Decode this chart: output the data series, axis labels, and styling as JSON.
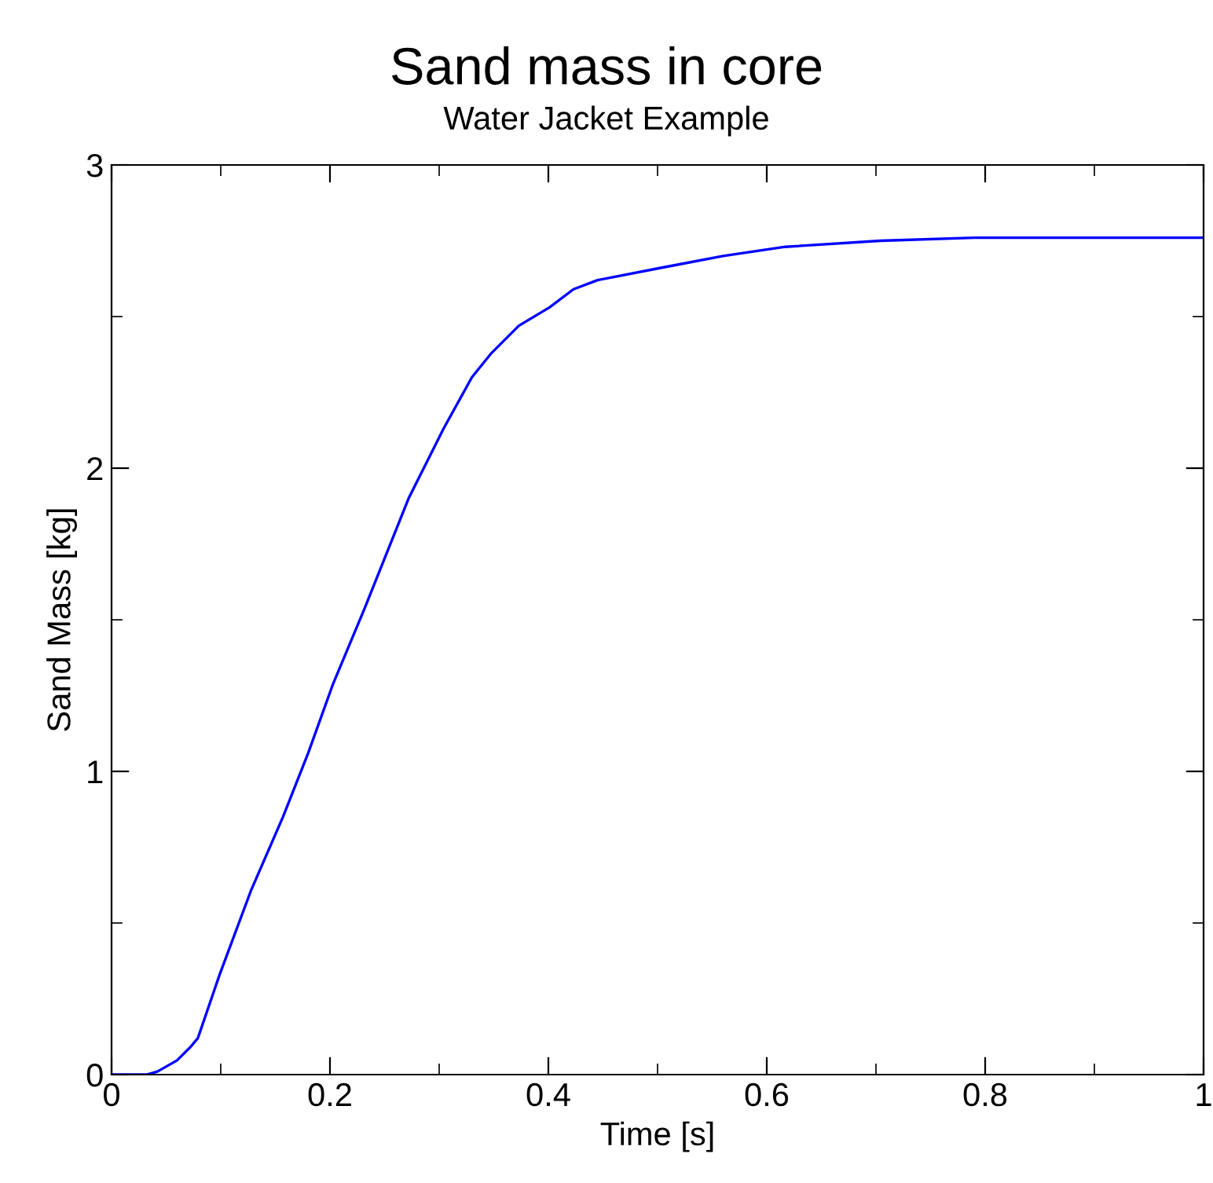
{
  "chart_data": {
    "type": "line",
    "title": "Sand mass in core",
    "subtitle": "Water Jacket Example",
    "xlabel": "Time [s]",
    "ylabel": "Sand Mass [kg]",
    "xlim": [
      0,
      1
    ],
    "ylim": [
      0,
      3
    ],
    "xticks": [
      0,
      0.2,
      0.4,
      0.6,
      0.8,
      1
    ],
    "yticks": [
      0,
      1,
      2,
      3
    ],
    "grid": false,
    "legend": false,
    "marker": "none",
    "line_style": "solid",
    "series": [
      {
        "color": "#0000ff",
        "x": [
          0,
          0.032,
          0.042,
          0.06,
          0.072,
          0.079,
          0.099,
          0.128,
          0.157,
          0.18,
          0.203,
          0.232,
          0.272,
          0.304,
          0.33,
          0.348,
          0.373,
          0.401,
          0.423,
          0.445,
          0.502,
          0.56,
          0.617,
          0.704,
          0.79,
          1
        ],
        "values": [
          0,
          0,
          0.01,
          0.047,
          0.09,
          0.12,
          0.33,
          0.61,
          0.85,
          1.06,
          1.29,
          1.54,
          1.9,
          2.13,
          2.3,
          2.38,
          2.47,
          2.53,
          2.59,
          2.62,
          2.66,
          2.7,
          2.73,
          2.75,
          2.76,
          2.76
        ]
      }
    ]
  }
}
